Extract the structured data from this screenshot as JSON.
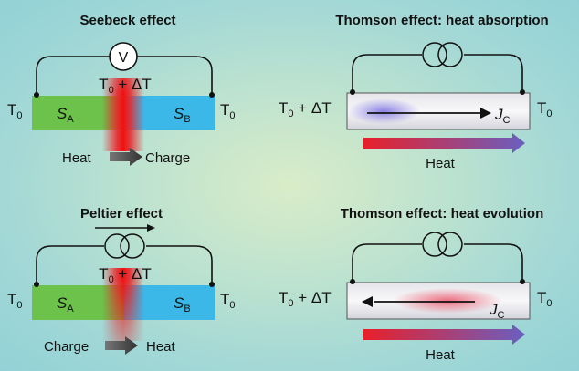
{
  "panels": {
    "seebeck": {
      "title": "Seebeck effect",
      "meter_symbol": "V",
      "t_left": "T",
      "t_left_sub": "0",
      "t_right": "T",
      "t_right_sub": "0",
      "t_center": "T",
      "t_center_sub": "0",
      "t_center_suffix": " + ΔT",
      "sa": "S",
      "sa_sub": "A",
      "sb": "S",
      "sb_sub": "B",
      "from": "Heat",
      "to": "Charge"
    },
    "peltier": {
      "title": "Peltier effect",
      "t_left": "T",
      "t_left_sub": "0",
      "t_right": "T",
      "t_right_sub": "0",
      "t_center": "T",
      "t_center_sub": "0",
      "t_center_suffix": " + ΔT",
      "sa": "S",
      "sa_sub": "A",
      "sb": "S",
      "sb_sub": "B",
      "from": "Charge",
      "to": "Heat"
    },
    "thomson_absorption": {
      "title": "Thomson effect: heat absorption",
      "t_left": "T",
      "t_left_sub": "0",
      "t_left_suffix": " + ΔT",
      "t_right": "T",
      "t_right_sub": "0",
      "current": "J",
      "current_sub": "C",
      "heat": "Heat"
    },
    "thomson_evolution": {
      "title": "Thomson effect: heat evolution",
      "t_left": "T",
      "t_left_sub": "0",
      "t_left_suffix": " + ΔT",
      "t_right": "T",
      "t_right_sub": "0",
      "current": "J",
      "current_sub": "C",
      "heat": "Heat"
    }
  },
  "colors": {
    "material_a": "#6cc24a",
    "material_b": "#3cb8e8",
    "hot": "#e8262a",
    "heat_arrow_start": "#e8202a",
    "heat_arrow_end": "#6a5fc0",
    "current_glow": "#7a6ee0"
  },
  "icons": [
    "voltmeter-icon",
    "transformer-coils-icon",
    "arrow-right-icon",
    "arrow-left-icon"
  ]
}
